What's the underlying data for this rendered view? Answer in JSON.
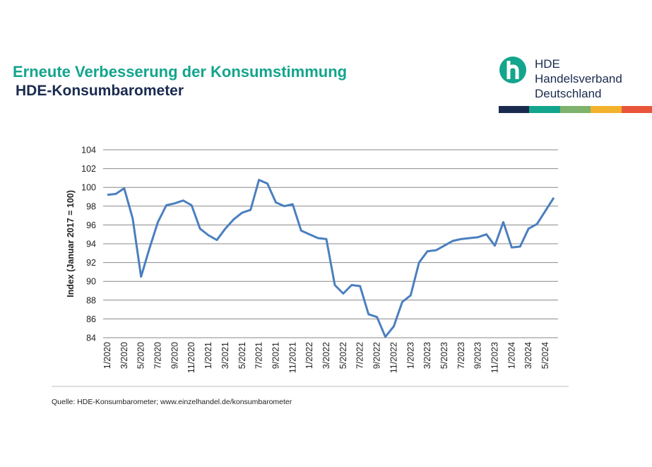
{
  "header": {
    "title": "Erneute Verbesserung der Konsumstimmung",
    "subtitle": "HDE-Konsumbarometer"
  },
  "logo": {
    "icon": "hde-h-logo-icon",
    "line1": "HDE",
    "line2": "Handelsverband",
    "line3": "Deutschland",
    "brand_color": "#13a58d",
    "bar_colors": [
      "#1a2b4f",
      "#13a58d",
      "#7fb26c",
      "#f3b22d",
      "#e9553b"
    ]
  },
  "source": "Quelle: HDE-Konsumbarometer; www.einzelhandel.de/konsumbarometer",
  "chart_data": {
    "type": "line",
    "title": "",
    "xlabel": "",
    "ylabel": "Index (Januar 2017 = 100)",
    "ylim": [
      84,
      104
    ],
    "yticks": [
      84,
      86,
      88,
      90,
      92,
      94,
      96,
      98,
      100,
      102,
      104
    ],
    "grid": true,
    "line_color": "#4a7fbf",
    "x": [
      "1/2020",
      "2/2020",
      "3/2020",
      "4/2020",
      "5/2020",
      "6/2020",
      "7/2020",
      "8/2020",
      "9/2020",
      "10/2020",
      "11/2020",
      "12/2020",
      "1/2021",
      "2/2021",
      "3/2021",
      "4/2021",
      "5/2021",
      "6/2021",
      "7/2021",
      "8/2021",
      "9/2021",
      "10/2021",
      "11/2021",
      "12/2021",
      "1/2022",
      "2/2022",
      "3/2022",
      "4/2022",
      "5/2022",
      "6/2022",
      "7/2022",
      "8/2022",
      "9/2022",
      "10/2022",
      "11/2022",
      "12/2022",
      "1/2023",
      "2/2023",
      "3/2023",
      "4/2023",
      "5/2023",
      "6/2023",
      "7/2023",
      "8/2023",
      "9/2023",
      "10/2023",
      "11/2023",
      "12/2023",
      "1/2024",
      "2/2024",
      "3/2024",
      "4/2024",
      "5/2024",
      "6/2024"
    ],
    "tick_labels": [
      "1/2020",
      "3/2020",
      "5/2020",
      "7/2020",
      "9/2020",
      "11/2020",
      "1/2021",
      "3/2021",
      "5/2021",
      "7/2021",
      "9/2021",
      "11/2021",
      "1/2022",
      "3/2022",
      "5/2022",
      "7/2022",
      "9/2022",
      "11/2022",
      "1/2023",
      "3/2023",
      "5/2023",
      "7/2023",
      "9/2023",
      "11/2023",
      "1/2024",
      "3/2024",
      "5/2024"
    ],
    "series": [
      {
        "values": [
          99.2,
          99.3,
          99.9,
          96.7,
          90.5,
          93.5,
          96.3,
          98.1,
          98.3,
          98.6,
          98.1,
          95.6,
          94.9,
          94.4,
          95.6,
          96.6,
          97.3,
          97.6,
          100.8,
          100.4,
          98.4,
          98.0,
          98.2,
          95.4,
          95.0,
          94.6,
          94.5,
          89.6,
          88.7,
          89.6,
          89.5,
          86.5,
          86.2,
          84.1,
          85.2,
          87.8,
          88.5,
          92.0,
          93.2,
          93.3,
          93.8,
          94.3,
          94.5,
          94.6,
          94.7,
          95.0,
          93.8,
          96.3,
          93.6,
          93.7,
          95.6,
          96.1,
          97.5,
          98.9
        ]
      }
    ]
  }
}
